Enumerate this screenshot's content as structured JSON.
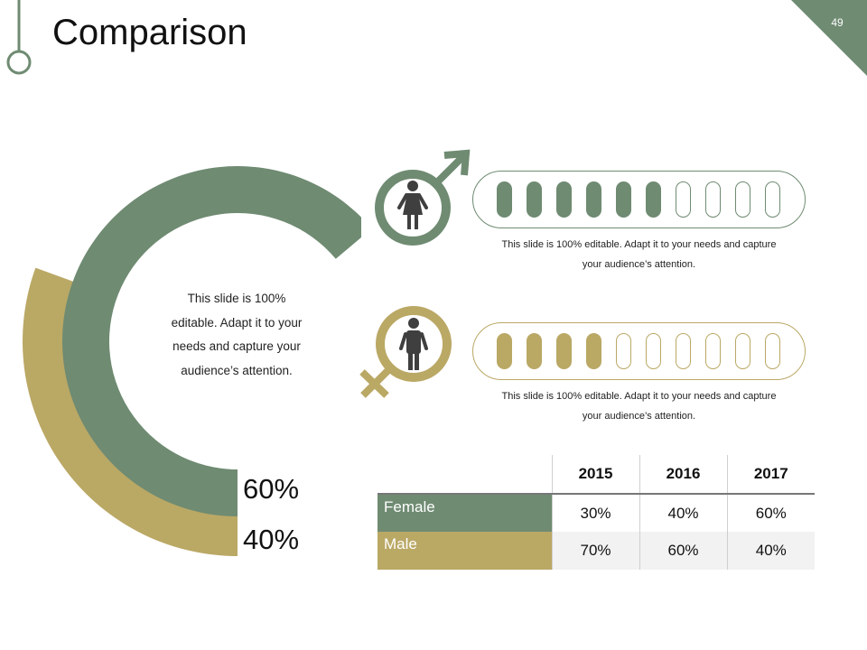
{
  "slide": {
    "title": "Comparison",
    "number": "49"
  },
  "colors": {
    "green": "#6f8b72",
    "gold": "#baa865",
    "frame": "#6f8b72"
  },
  "rings": {
    "text": "This slide is 100% editable. Adapt it to your needs and capture your audience’s attention.",
    "green_label": "60%",
    "green_fraction": 0.6,
    "gold_label": "40%",
    "gold_fraction": 0.4
  },
  "gauges": [
    {
      "name": "female",
      "icon": "female-symbol-icon",
      "filled": 6,
      "total": 10,
      "caption_line1": "This slide is 100% editable. Adapt it to your needs and capture",
      "caption_line2": "your audience’s attention."
    },
    {
      "name": "male",
      "icon": "male-symbol-icon",
      "filled": 4,
      "total": 10,
      "caption_line1": "This slide is 100% editable. Adapt it to your needs and capture",
      "caption_line2": "your audience’s attention."
    }
  ],
  "table": {
    "headers": [
      "",
      "2015",
      "2016",
      "2017"
    ],
    "rows": [
      {
        "label": "Female",
        "values": [
          "30%",
          "40%",
          "60%"
        ]
      },
      {
        "label": "Male",
        "values": [
          "70%",
          "60%",
          "40%"
        ]
      }
    ]
  }
}
